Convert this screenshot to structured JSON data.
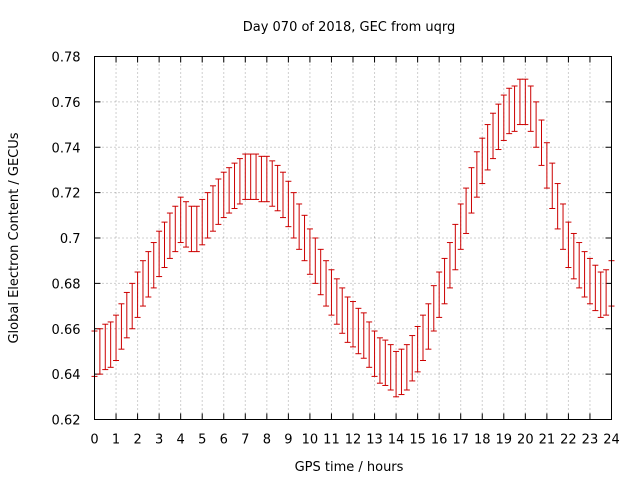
{
  "chart_data": {
    "type": "line",
    "title": "Day 070 of 2018, GEC from uqrg",
    "xlabel": "GPS time / hours",
    "ylabel": "Global Electron Content / GECUs",
    "xlim": [
      0,
      24
    ],
    "ylim": [
      0.62,
      0.78
    ],
    "xticks": [
      "0",
      "1",
      "2",
      "3",
      "4",
      "5",
      "6",
      "7",
      "8",
      "9",
      "10",
      "11",
      "12",
      "13",
      "14",
      "15",
      "16",
      "17",
      "18",
      "19",
      "20",
      "21",
      "22",
      "23",
      "24"
    ],
    "yticks": [
      "0.62",
      "0.64",
      "0.66",
      "0.68",
      "0.7",
      "0.72",
      "0.74",
      "0.76",
      "0.78"
    ],
    "grid": true,
    "series_color": "#cc0000",
    "series": [
      {
        "name": "GEC",
        "x": [
          0,
          0.25,
          0.5,
          0.75,
          1,
          1.25,
          1.5,
          1.75,
          2,
          2.25,
          2.5,
          2.75,
          3,
          3.25,
          3.5,
          3.75,
          4,
          4.25,
          4.5,
          4.75,
          5,
          5.25,
          5.5,
          5.75,
          6,
          6.25,
          6.5,
          6.75,
          7,
          7.25,
          7.5,
          7.75,
          8,
          8.25,
          8.5,
          8.75,
          9,
          9.25,
          9.5,
          9.75,
          10,
          10.25,
          10.5,
          10.75,
          11,
          11.25,
          11.5,
          11.75,
          12,
          12.25,
          12.5,
          12.75,
          13,
          13.25,
          13.5,
          13.75,
          14,
          14.25,
          14.5,
          14.75,
          15,
          15.25,
          15.5,
          15.75,
          16,
          16.25,
          16.5,
          16.75,
          17,
          17.25,
          17.5,
          17.75,
          18,
          18.25,
          18.5,
          18.75,
          19,
          19.25,
          19.5,
          19.75,
          20,
          20.25,
          20.5,
          20.75,
          21,
          21.25,
          21.5,
          21.75,
          22,
          22.25,
          22.5,
          22.75,
          23,
          23.25,
          23.5,
          23.75,
          24
        ],
        "y": [
          0.649,
          0.65,
          0.652,
          0.653,
          0.656,
          0.661,
          0.666,
          0.67,
          0.675,
          0.68,
          0.684,
          0.688,
          0.693,
          0.697,
          0.701,
          0.704,
          0.708,
          0.706,
          0.704,
          0.704,
          0.707,
          0.71,
          0.713,
          0.716,
          0.719,
          0.721,
          0.723,
          0.725,
          0.727,
          0.727,
          0.727,
          0.726,
          0.726,
          0.724,
          0.722,
          0.719,
          0.715,
          0.71,
          0.705,
          0.7,
          0.694,
          0.69,
          0.685,
          0.68,
          0.676,
          0.672,
          0.668,
          0.664,
          0.662,
          0.659,
          0.657,
          0.653,
          0.649,
          0.646,
          0.645,
          0.643,
          0.64,
          0.641,
          0.643,
          0.647,
          0.651,
          0.656,
          0.661,
          0.669,
          0.675,
          0.681,
          0.688,
          0.696,
          0.705,
          0.712,
          0.721,
          0.728,
          0.734,
          0.74,
          0.745,
          0.749,
          0.753,
          0.756,
          0.757,
          0.76,
          0.76,
          0.757,
          0.75,
          0.742,
          0.732,
          0.723,
          0.714,
          0.705,
          0.697,
          0.692,
          0.688,
          0.684,
          0.681,
          0.678,
          0.675,
          0.676,
          0.68
        ],
        "err": [
          0.01,
          0.01,
          0.01,
          0.01,
          0.01,
          0.01,
          0.01,
          0.01,
          0.01,
          0.01,
          0.01,
          0.01,
          0.01,
          0.01,
          0.01,
          0.01,
          0.01,
          0.01,
          0.01,
          0.01,
          0.01,
          0.01,
          0.01,
          0.01,
          0.01,
          0.01,
          0.01,
          0.01,
          0.01,
          0.01,
          0.01,
          0.01,
          0.01,
          0.01,
          0.01,
          0.01,
          0.01,
          0.01,
          0.01,
          0.01,
          0.01,
          0.01,
          0.01,
          0.01,
          0.01,
          0.01,
          0.01,
          0.01,
          0.01,
          0.01,
          0.01,
          0.01,
          0.01,
          0.01,
          0.01,
          0.01,
          0.01,
          0.01,
          0.01,
          0.01,
          0.01,
          0.01,
          0.01,
          0.01,
          0.01,
          0.01,
          0.01,
          0.01,
          0.01,
          0.01,
          0.01,
          0.01,
          0.01,
          0.01,
          0.01,
          0.01,
          0.01,
          0.01,
          0.01,
          0.01,
          0.01,
          0.01,
          0.01,
          0.01,
          0.01,
          0.01,
          0.01,
          0.01,
          0.01,
          0.01,
          0.01,
          0.01,
          0.01,
          0.01,
          0.01,
          0.01,
          0.01
        ]
      }
    ]
  }
}
